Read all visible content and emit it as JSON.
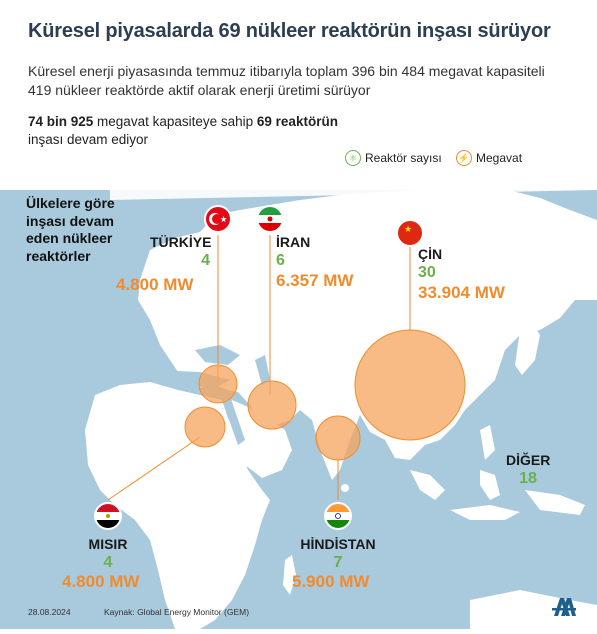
{
  "header": {
    "title": "Küresel piyasalarda 69 nükleer reaktörün inşası sürüyor",
    "subtitle": "Küresel enerji piyasasında temmuz itibarıyla toplam 396 bin 484 megavat kapasiteli 419 nükleer reaktörde aktif olarak enerji üretimi sürüyor",
    "sub2_part1": "74 bin 925",
    "sub2_part2": " megavat kapasiteye sahip ",
    "sub2_part3": "69 reaktörün",
    "sub2_part4": "inşası devam ediyor"
  },
  "legend": {
    "reactor_label": "Reaktör sayısı",
    "megawatt_label": "Megavat",
    "reactor_icon": "atom-icon",
    "megawatt_icon": "lightning-icon"
  },
  "side_text": "Ülkelere göre inşası devam eden nükleer reaktörler",
  "countries": [
    {
      "name": "TÜRKİYE",
      "count": "4",
      "mw": "4.800 MW",
      "flag": "turkey-flag"
    },
    {
      "name": "İRAN",
      "count": "6",
      "mw": "6.357 MW",
      "flag": "iran-flag"
    },
    {
      "name": "ÇİN",
      "count": "30",
      "mw": "33.904 MW",
      "flag": "china-flag"
    },
    {
      "name": "MISIR",
      "count": "4",
      "mw": "4.800 MW",
      "flag": "egypt-flag"
    },
    {
      "name": "HİNDİSTAN",
      "count": "7",
      "mw": "5.900 MW",
      "flag": "india-flag"
    },
    {
      "name": "DİĞER",
      "count": "18"
    }
  ],
  "footer": {
    "date": "28.08.2024",
    "source": "Kaynak: Global Energy Monitor (GEM)"
  },
  "colors": {
    "map_water": "#a8c8dc",
    "land": "#ffffff",
    "bubble": "#f5a45d",
    "count_green": "#6ab04c",
    "mw_orange": "#f08c2e",
    "title": "#2c3e50"
  }
}
